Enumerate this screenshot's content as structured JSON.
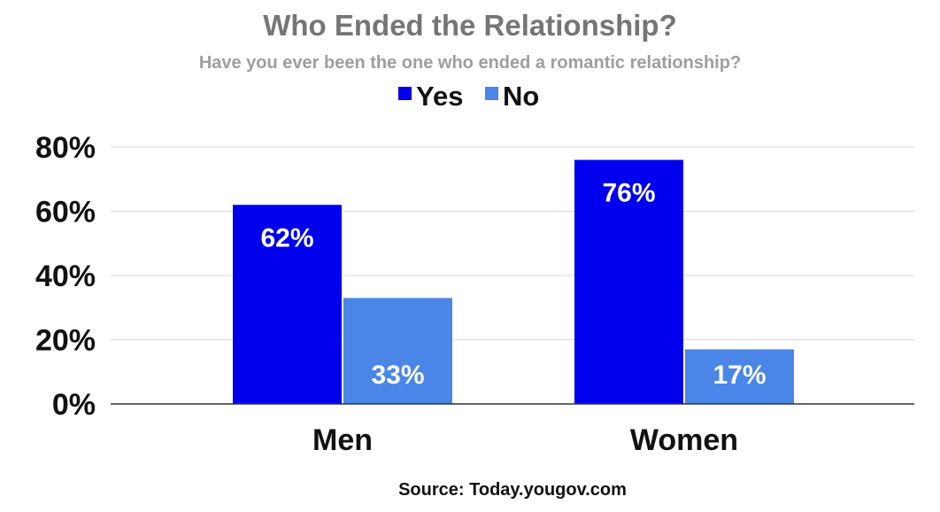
{
  "chart_data": {
    "type": "bar",
    "title": "Who Ended the Relationship?",
    "subtitle": "Have you ever been the one who ended a romantic relationship?",
    "categories": [
      "Men",
      "Women"
    ],
    "series": [
      {
        "name": "Yes",
        "values": [
          62,
          76
        ],
        "labels": [
          "62%",
          "76%"
        ],
        "color": "#0000ee"
      },
      {
        "name": "No",
        "values": [
          33,
          17
        ],
        "labels": [
          "33%",
          "17%"
        ],
        "color": "#4a86e8"
      }
    ],
    "ylim": [
      0,
      80
    ],
    "yticks": [
      0,
      20,
      40,
      60,
      80
    ],
    "ytick_labels": [
      "0%",
      "20%",
      "40%",
      "60%",
      "80%"
    ],
    "xlabel": "",
    "ylabel": "",
    "grid": true,
    "legend": "top-center",
    "source": "Source: Today.yougov.com"
  },
  "colors": {
    "title": "#757575",
    "subtitle": "#9e9e9e",
    "gridline": "#d9d9d9",
    "axis": "#333333"
  }
}
